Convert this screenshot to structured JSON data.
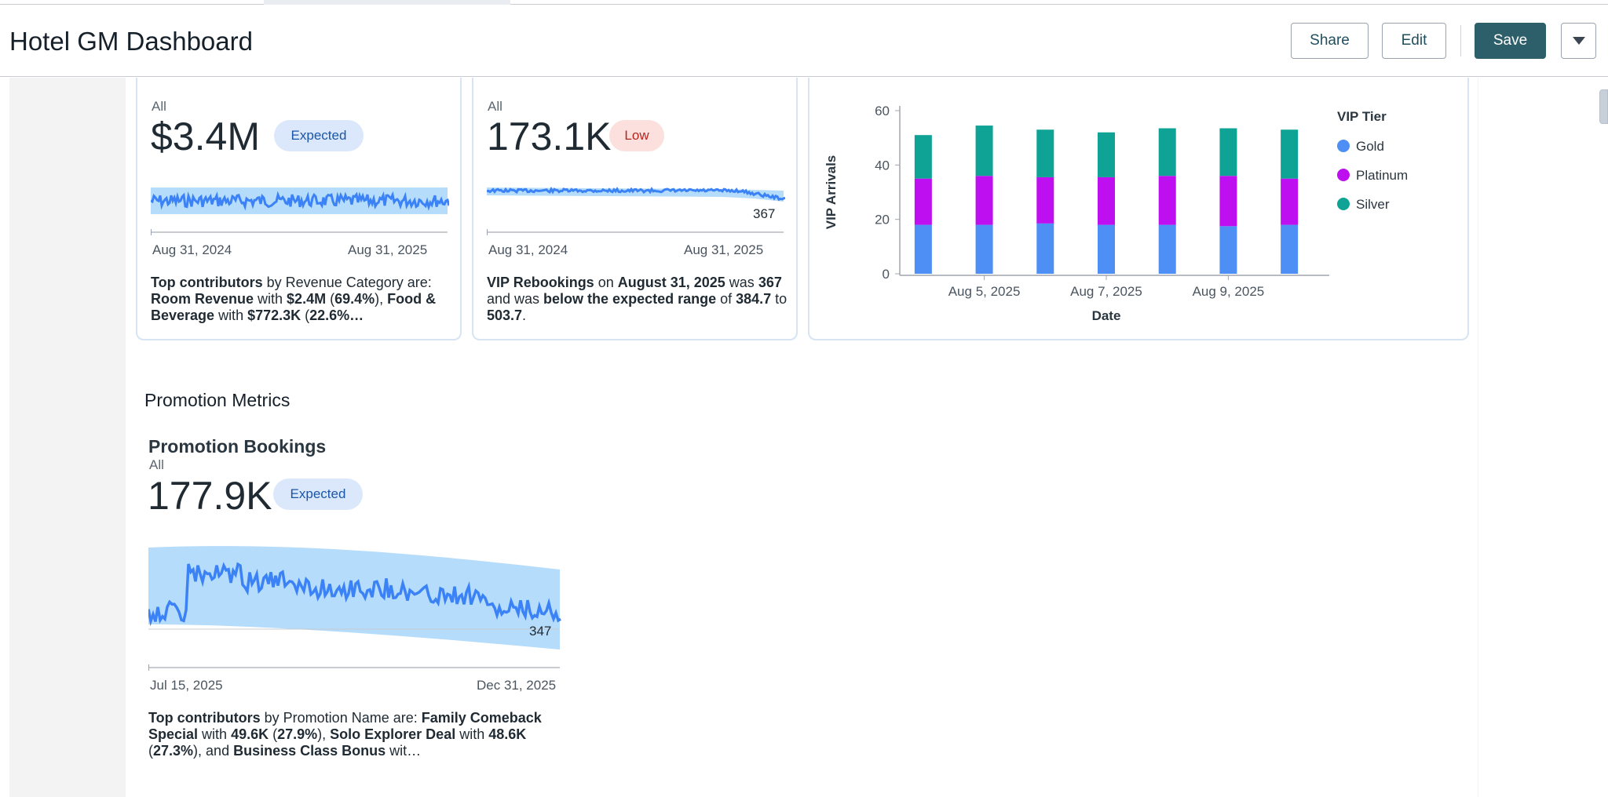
{
  "header": {
    "title": "Hotel GM Dashboard",
    "share_label": "Share",
    "edit_label": "Edit",
    "save_label": "Save",
    "more_icon": "chevron-down-icon"
  },
  "colors": {
    "primary": "#2d5f6a",
    "line": "#3b82f6",
    "band": "#b5dcfb",
    "gold": "#4d8ff5",
    "platinum": "#bd0ff0",
    "silver": "#0fa396"
  },
  "vip_revenue": {
    "filter": "All",
    "value": "$3.4M",
    "badge": "Expected",
    "date_start": "Aug 31, 2024",
    "date_end": "Aug 31, 2025",
    "summary": {
      "a": "Top contributors",
      "b": " by Revenue Category are: ",
      "c": "Room Revenue",
      "d": " with ",
      "e": "$2.4M",
      "f": " (",
      "g": "69.4%",
      "h": "), ",
      "i": "Food & Beverage",
      "j": " with ",
      "k": "$772.3K",
      "l": " (",
      "m": "22.6%…"
    }
  },
  "vip_rebookings": {
    "filter": "All",
    "value": "173.1K",
    "badge": "Low",
    "last_value": "367",
    "date_start": "Aug 31, 2024",
    "date_end": "Aug 31, 2025",
    "summary": {
      "a": "VIP Rebookings",
      "b": " on ",
      "c": "August 31, 2025",
      "d": " was ",
      "e": "367",
      "f": " and was ",
      "g": "below the expected range",
      "h": " of ",
      "i": "384.7",
      "j": " to ",
      "k": "503.7",
      "l": "."
    }
  },
  "vip_arrivals_chart": {
    "legend_title": "VIP Tier",
    "legend": [
      "Gold",
      "Platinum",
      "Silver"
    ],
    "ylabel": "VIP Arrivals",
    "xlabel": "Date",
    "y_ticks": [
      "60",
      "40",
      "20",
      "0"
    ],
    "x_ticks": [
      "Aug 5, 2025",
      "Aug 7, 2025",
      "Aug 9, 2025"
    ]
  },
  "chart_data": {
    "type": "bar",
    "stacked": true,
    "categories": [
      "Aug 4, 2025",
      "Aug 5, 2025",
      "Aug 6, 2025",
      "Aug 7, 2025",
      "Aug 8, 2025",
      "Aug 9, 2025",
      "Aug 10, 2025"
    ],
    "series": [
      {
        "name": "Gold",
        "values": [
          18,
          18,
          18.5,
          18,
          18,
          17.5,
          18
        ]
      },
      {
        "name": "Platinum",
        "values": [
          17,
          18,
          17,
          17.5,
          18,
          18.5,
          17
        ]
      },
      {
        "name": "Silver",
        "values": [
          16,
          18.5,
          17.5,
          16.5,
          17.5,
          17.5,
          18
        ]
      }
    ],
    "xlabel": "Date",
    "ylabel": "VIP Arrivals",
    "ylim": [
      0,
      60
    ],
    "legend_title": "VIP Tier",
    "legend_position": "right"
  },
  "promotion_section": {
    "title": "Promotion Metrics"
  },
  "promotion_bookings": {
    "title": "Promotion Bookings",
    "filter": "All",
    "value": "177.9K",
    "badge": "Expected",
    "last_value": "347",
    "date_start": "Jul 15, 2025",
    "date_end": "Dec 31, 2025",
    "summary": {
      "a": "Top contributors",
      "b": " by Promotion Name are: ",
      "c": "Family Comeback Special",
      "d": " with ",
      "e": "49.6K",
      "f": " (",
      "g": "27.9%",
      "h": "), ",
      "i": "Solo Explorer Deal",
      "j": " with ",
      "k": "48.6K",
      "l": " (",
      "m": "27.3%",
      "n": "), and ",
      "o": "Business Class Bonus",
      "p": " wit…"
    }
  }
}
